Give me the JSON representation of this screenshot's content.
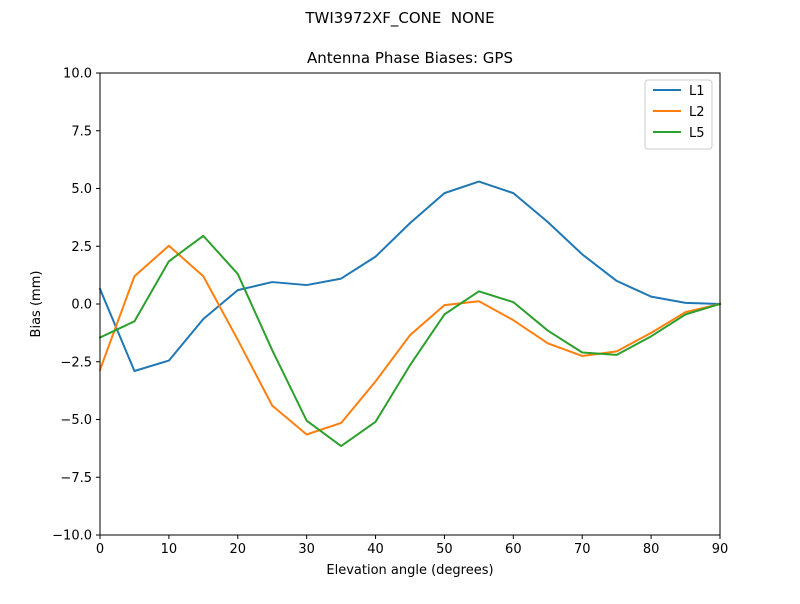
{
  "figure": {
    "suptitle": "TWI3972XF_CONE  NONE"
  },
  "chart_data": {
    "type": "line",
    "title": "Antenna Phase Biases: GPS",
    "xlabel": "Elevation angle (degrees)",
    "ylabel": "Bias (mm)",
    "xlim": [
      0,
      90
    ],
    "ylim": [
      -10,
      10
    ],
    "xticks": [
      0,
      10,
      20,
      30,
      40,
      50,
      60,
      70,
      80,
      90
    ],
    "xtick_labels": [
      "0",
      "10",
      "20",
      "30",
      "40",
      "50",
      "60",
      "70",
      "80",
      "90"
    ],
    "yticks": [
      -10,
      -7.5,
      -5,
      -2.5,
      0,
      2.5,
      5,
      7.5,
      10
    ],
    "ytick_labels": [
      "−10.0",
      "−7.5",
      "−5.0",
      "−2.5",
      "0.0",
      "2.5",
      "5.0",
      "7.5",
      "10.0"
    ],
    "grid": false,
    "legend_position": "top-right",
    "x": [
      0,
      5,
      10,
      15,
      20,
      25,
      30,
      35,
      40,
      45,
      50,
      55,
      60,
      65,
      70,
      75,
      80,
      85,
      90
    ],
    "series": [
      {
        "name": "L1",
        "color": "#1f77b4",
        "values": [
          0.65,
          -2.9,
          -2.45,
          -0.65,
          0.6,
          0.95,
          0.82,
          1.1,
          2.05,
          3.5,
          4.8,
          5.3,
          4.8,
          3.55,
          2.15,
          1.0,
          0.32,
          0.05,
          0.0
        ]
      },
      {
        "name": "L2",
        "color": "#ff7f0e",
        "values": [
          -2.85,
          1.2,
          2.52,
          1.2,
          -1.55,
          -4.4,
          -5.65,
          -5.15,
          -3.35,
          -1.35,
          -0.05,
          0.12,
          -0.7,
          -1.7,
          -2.25,
          -2.05,
          -1.25,
          -0.35,
          0.0
        ]
      },
      {
        "name": "L5",
        "color": "#2ca02c",
        "values": [
          -1.45,
          -0.75,
          1.85,
          2.95,
          1.3,
          -2.0,
          -5.05,
          -6.15,
          -5.1,
          -2.65,
          -0.45,
          0.55,
          0.08,
          -1.15,
          -2.1,
          -2.2,
          -1.4,
          -0.45,
          0.0
        ]
      }
    ]
  }
}
